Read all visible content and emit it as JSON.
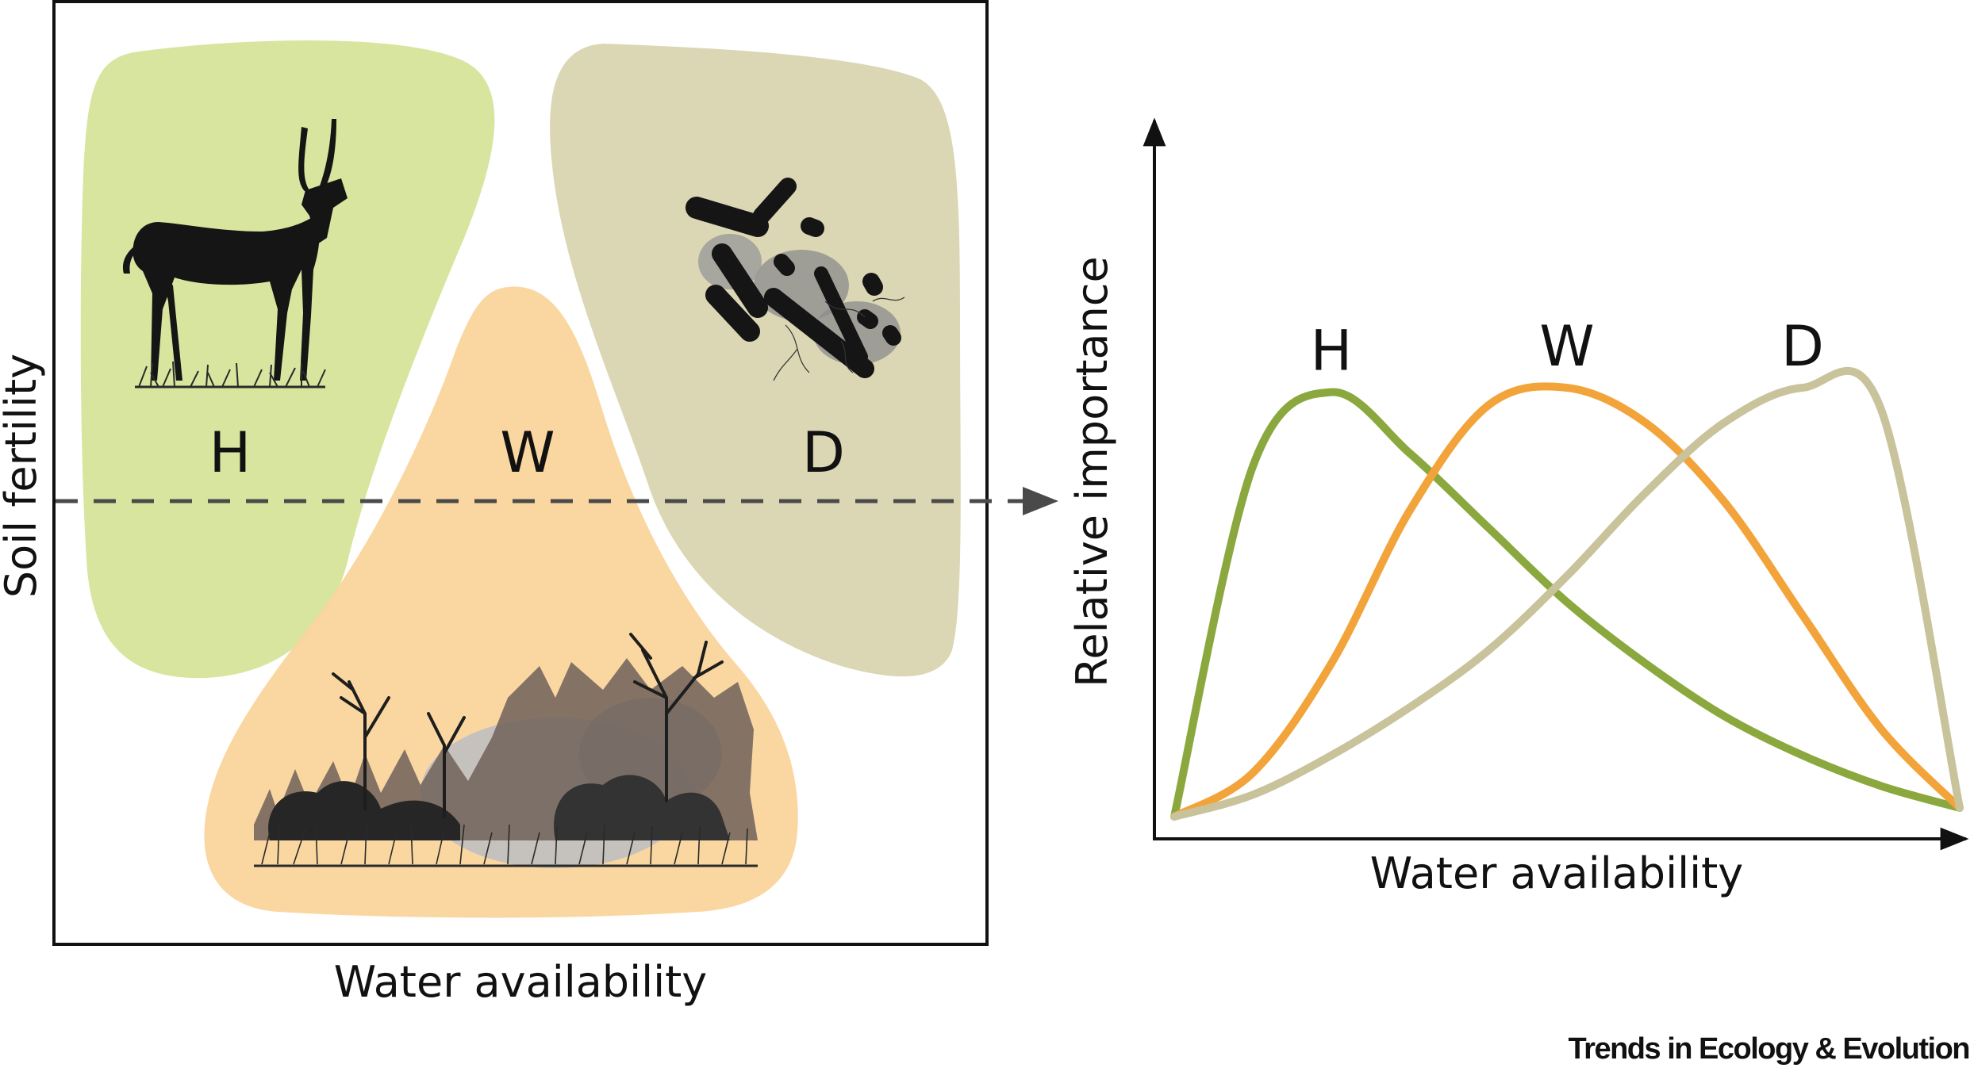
{
  "left_panel": {
    "y_axis_label": "Soil fertility",
    "x_axis_label": "Water availability",
    "regions": [
      {
        "key": "H",
        "label": "H",
        "color": "#d6e49a",
        "icon": "gazelle-icon"
      },
      {
        "key": "W",
        "label": "W",
        "color": "#fad59c",
        "icon": "burning-savanna-icon"
      },
      {
        "key": "D",
        "label": "D",
        "color": "#d9d4b0",
        "icon": "decomposer-bacteria-icon"
      }
    ],
    "arrow_color": "#4a4a4a"
  },
  "chart_data": {
    "type": "line",
    "xlabel": "Water availability",
    "ylabel": "Relative importance",
    "x": [
      0,
      0.1,
      0.2,
      0.3,
      0.4,
      0.5,
      0.6,
      0.7,
      0.8,
      0.9,
      1.0
    ],
    "ylim": [
      0,
      1
    ],
    "grid": false,
    "series": [
      {
        "name": "H",
        "color": "#8aa83e",
        "values": [
          0.0,
          0.8,
          0.97,
          0.83,
          0.66,
          0.49,
          0.35,
          0.23,
          0.14,
          0.07,
          0.02
        ]
      },
      {
        "name": "W",
        "color": "#f2a33a",
        "values": [
          0.0,
          0.1,
          0.35,
          0.7,
          0.94,
          0.98,
          0.9,
          0.72,
          0.46,
          0.2,
          0.02
        ]
      },
      {
        "name": "D",
        "color": "#c9c39b",
        "values": [
          0.0,
          0.05,
          0.14,
          0.25,
          0.38,
          0.55,
          0.74,
          0.9,
          0.98,
          0.93,
          0.02
        ]
      }
    ]
  },
  "footer": {
    "brand": "Trends in Ecology & Evolution"
  }
}
